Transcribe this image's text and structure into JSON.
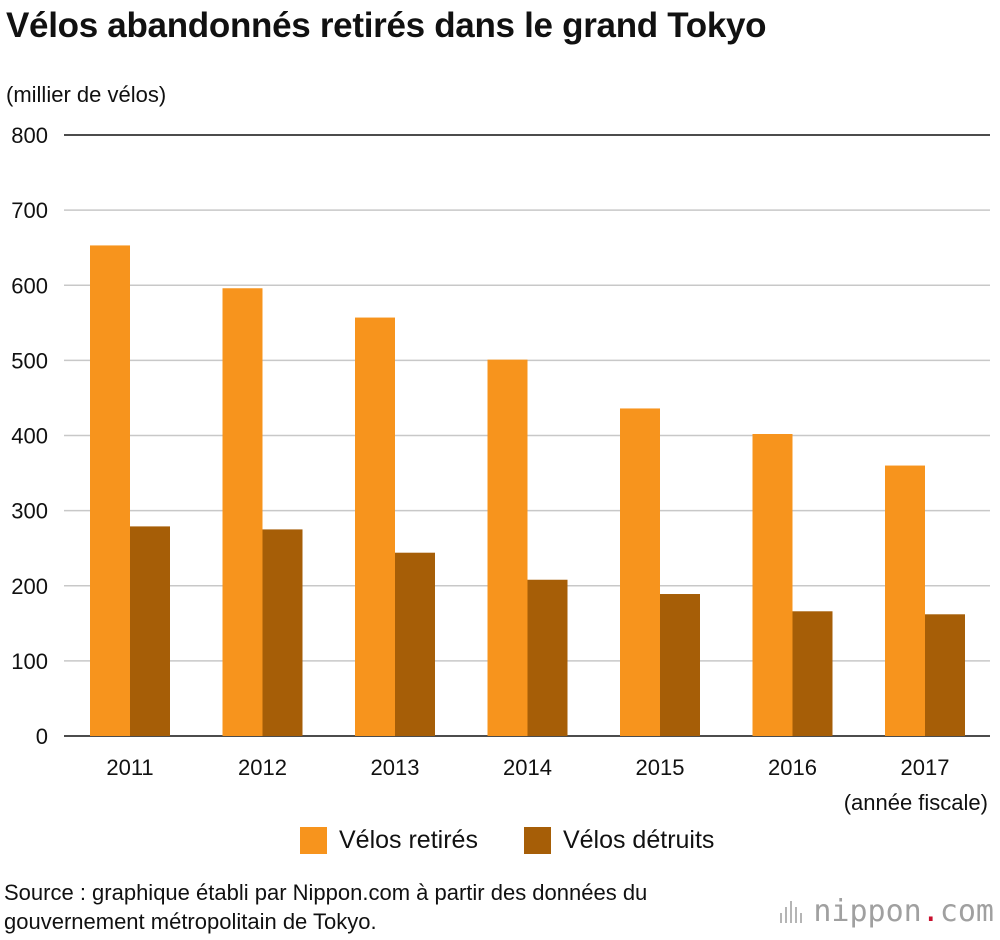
{
  "colors": {
    "retires": "#F7941D",
    "detruits": "#A65E07"
  },
  "brand": {
    "name": "nippon",
    "dot": ".",
    "tld": "com"
  },
  "source": "Source : graphique établi par Nippon.com à partir des données du gouvernement métropolitain de Tokyo.",
  "chart_data": {
    "type": "bar",
    "title": "Vélos abandonnés retirés dans le grand Tokyo",
    "ylabel": "(millier de vélos)",
    "xlabel": "(année fiscale)",
    "categories": [
      "2011",
      "2012",
      "2013",
      "2014",
      "2015",
      "2016",
      "2017"
    ],
    "series": [
      {
        "name": "Vélos retirés",
        "values": [
          653,
          596,
          557,
          501,
          436,
          402,
          360
        ]
      },
      {
        "name": "Vélos détruits",
        "values": [
          279,
          275,
          244,
          208,
          189,
          166,
          162
        ]
      }
    ],
    "ylim": [
      0,
      800
    ],
    "yticks": [
      "0",
      "100",
      "200",
      "300",
      "400",
      "500",
      "600",
      "700",
      "800"
    ],
    "grid": true,
    "legend": "bottom"
  }
}
